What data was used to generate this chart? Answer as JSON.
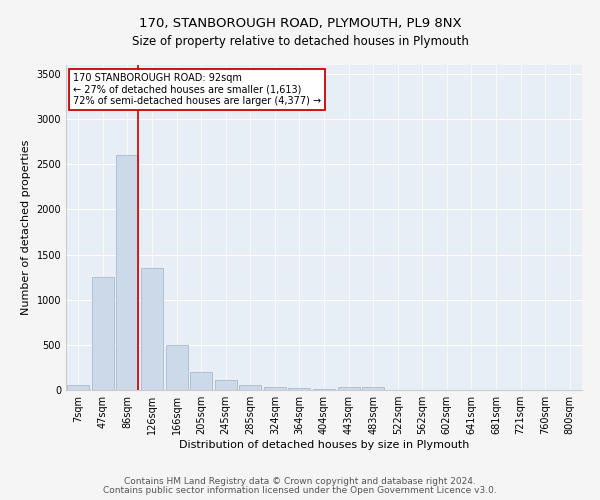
{
  "title1": "170, STANBOROUGH ROAD, PLYMOUTH, PL9 8NX",
  "title2": "Size of property relative to detached houses in Plymouth",
  "xlabel": "Distribution of detached houses by size in Plymouth",
  "ylabel": "Number of detached properties",
  "bar_color": "#ccd9e8",
  "bar_edgecolor": "#aabbd0",
  "background_color": "#e8eef5",
  "grid_color": "#ffffff",
  "categories": [
    "7sqm",
    "47sqm",
    "86sqm",
    "126sqm",
    "166sqm",
    "205sqm",
    "245sqm",
    "285sqm",
    "324sqm",
    "364sqm",
    "404sqm",
    "443sqm",
    "483sqm",
    "522sqm",
    "562sqm",
    "602sqm",
    "641sqm",
    "681sqm",
    "721sqm",
    "760sqm",
    "800sqm"
  ],
  "values": [
    50,
    1250,
    2600,
    1350,
    500,
    200,
    115,
    50,
    35,
    20,
    10,
    30,
    30,
    0,
    0,
    0,
    0,
    0,
    0,
    0,
    0
  ],
  "ylim": [
    0,
    3600
  ],
  "yticks": [
    0,
    500,
    1000,
    1500,
    2000,
    2500,
    3000,
    3500
  ],
  "property_line_x": 2.42,
  "annotation_text": "170 STANBOROUGH ROAD: 92sqm\n← 27% of detached houses are smaller (1,613)\n72% of semi-detached houses are larger (4,377) →",
  "annotation_box_color": "#ffffff",
  "annotation_box_edgecolor": "#cc0000",
  "red_line_color": "#cc0000",
  "footer1": "Contains HM Land Registry data © Crown copyright and database right 2024.",
  "footer2": "Contains public sector information licensed under the Open Government Licence v3.0.",
  "title1_fontsize": 9.5,
  "title2_fontsize": 8.5,
  "xlabel_fontsize": 8,
  "ylabel_fontsize": 8,
  "tick_fontsize": 7,
  "annotation_fontsize": 7,
  "footer_fontsize": 6.5
}
